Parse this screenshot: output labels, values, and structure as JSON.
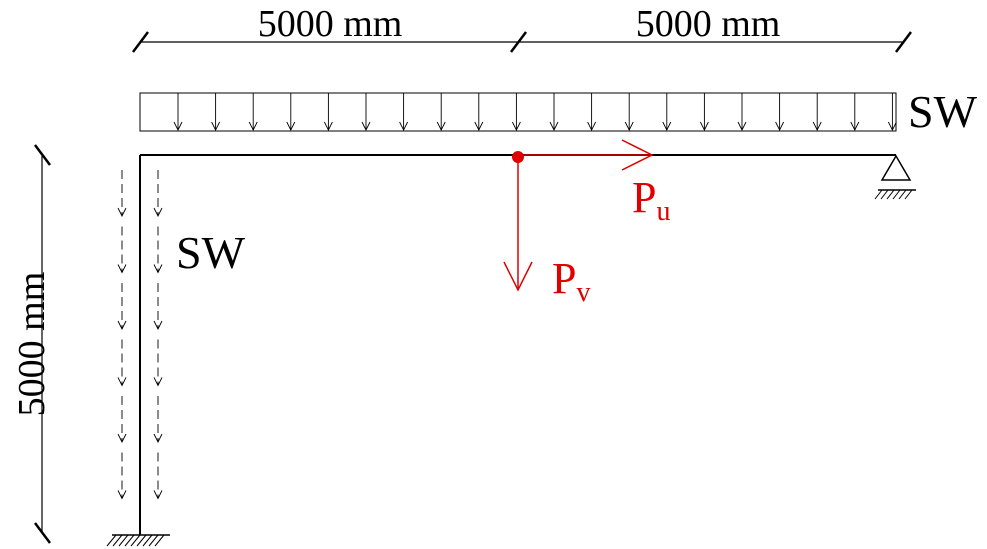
{
  "dimensions": {
    "left_span": "5000 mm",
    "right_span": "5000 mm",
    "column_height": "5000 mm"
  },
  "loads": {
    "beam_self_weight": "SW",
    "column_self_weight": "SW",
    "horizontal_force": {
      "symbol": "P",
      "subscript": "u"
    },
    "vertical_force": {
      "symbol": "P",
      "subscript": "v"
    }
  },
  "colors": {
    "structure": "#000000",
    "applied_load": "#e00000"
  }
}
